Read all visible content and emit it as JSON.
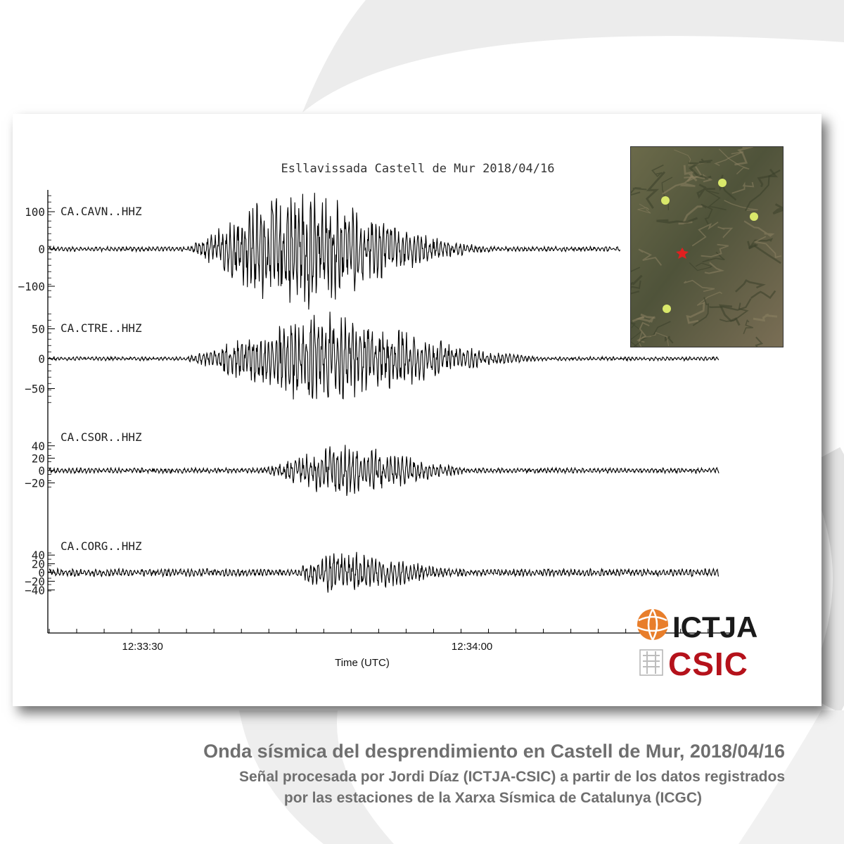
{
  "caption": {
    "line1": "Onda sísmica del desprendimiento en Castell de Mur, 2018/04/16",
    "line2": "Señal procesada por Jordi Díaz (ICTJA-CSIC) a partir de los datos registrados",
    "line3": "por las estaciones de la Xarxa Sísmica de Catalunya (ICGC)"
  },
  "logos": {
    "ictja": "ICTJA",
    "csic": "CSIC"
  },
  "colors": {
    "trace": "#000000",
    "station_dot": "#d9e86a",
    "source_marker": "#e02020",
    "csic_red": "#b5121b",
    "ictja_orange": "#e87e2b"
  },
  "chart_data": {
    "type": "line",
    "title": "Esllavissada Castell de Mur 2018/04/16",
    "xlabel": "Time (UTC)",
    "x_ticks": [
      "12:33:30",
      "12:34:00"
    ],
    "grid": false,
    "series": [
      {
        "name": "CA.CAVN..HHZ",
        "y_ticks": [
          "100",
          "0",
          "−100"
        ],
        "tick_values": [
          100,
          0,
          -100
        ],
        "ylim": [
          -130,
          160
        ],
        "peak_amplitude": 150,
        "duration_s": 50,
        "envelope": {
          "onset_s": 12.5,
          "peak_s": 21,
          "decay_s": 29,
          "background": 6
        }
      },
      {
        "name": "CA.CTRE..HHZ",
        "y_ticks": [
          "50",
          "0",
          "−50"
        ],
        "tick_values": [
          50,
          0,
          -50
        ],
        "ylim": [
          -75,
          75
        ],
        "peak_amplitude": 70,
        "duration_s": 58,
        "envelope": {
          "onset_s": 12,
          "peak_s": 24,
          "decay_s": 33,
          "background": 3
        }
      },
      {
        "name": "CA.CSOR..HHZ",
        "y_ticks": [
          "40",
          "20",
          "0",
          "−20"
        ],
        "tick_values": [
          40,
          20,
          0,
          -20
        ],
        "ylim": [
          -35,
          45
        ],
        "peak_amplitude": 40,
        "duration_s": 58,
        "envelope": {
          "onset_s": 19,
          "peak_s": 26,
          "decay_s": 31,
          "background": 4
        }
      },
      {
        "name": "CA.CORG..HHZ",
        "y_ticks": [
          "40",
          "20",
          "0",
          "−20",
          "−40"
        ],
        "tick_values": [
          40,
          20,
          0,
          -20,
          -40
        ],
        "ylim": [
          -55,
          45
        ],
        "peak_amplitude": 45,
        "duration_s": 58,
        "envelope": {
          "onset_s": 22,
          "peak_s": 25.5,
          "decay_s": 31,
          "background": 8
        }
      }
    ],
    "time_window_s": [
      0,
      62
    ],
    "inset_map": {
      "stations_shown": 4,
      "source_marker": "red star"
    }
  }
}
